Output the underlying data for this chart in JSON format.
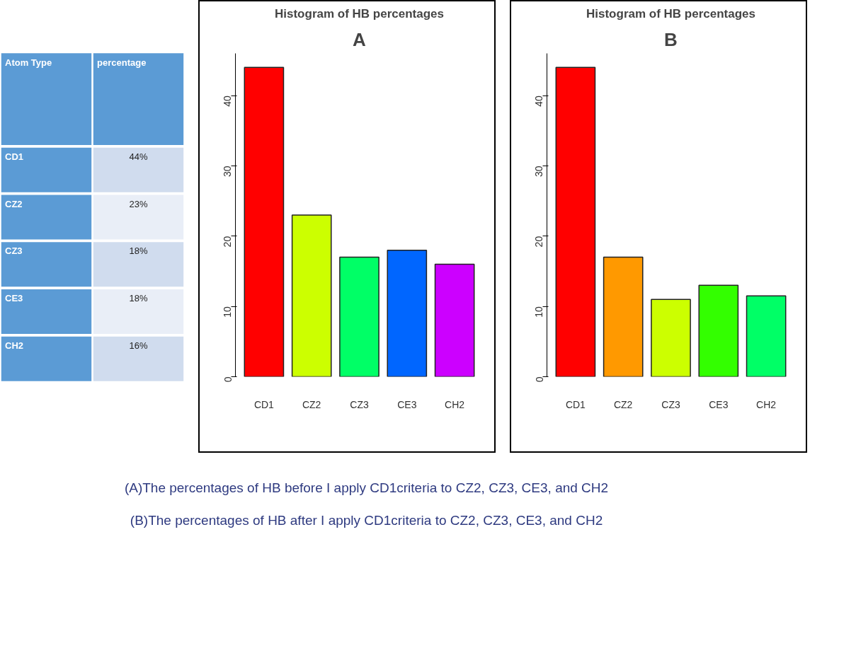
{
  "chart_data": [
    {
      "type": "other",
      "annotations": [
        "Atom Type",
        "percentage",
        "CD1",
        "44%",
        "CZ2",
        "23%",
        "CZ3",
        "18%",
        "CE3",
        "18%",
        "CH2",
        "16%"
      ]
    },
    {
      "type": "bar",
      "title": "Histogram of HB percentages",
      "annotations": [
        "A"
      ],
      "categories": [
        "CD1",
        "CZ2",
        "CZ3",
        "CE3",
        "CH2"
      ],
      "values": [
        44,
        23,
        17,
        18,
        16
      ],
      "colors": [
        "#ff0000",
        "#ccff00",
        "#00ff66",
        "#0066ff",
        "#cc00ff"
      ],
      "ylim": [
        0,
        46
      ],
      "yticks": [
        0,
        10,
        20,
        30,
        40
      ],
      "grid": false
    },
    {
      "type": "bar",
      "title": "Histogram of HB percentages",
      "annotations": [
        "B"
      ],
      "categories": [
        "CD1",
        "CZ2",
        "CZ3",
        "CE3",
        "CH2"
      ],
      "values": [
        44,
        17,
        11,
        13,
        11.5
      ],
      "colors": [
        "#ff0000",
        "#ff9900",
        "#ccff00",
        "#33ff00",
        "#00ff66"
      ],
      "ylim": [
        0,
        46
      ],
      "yticks": [
        0,
        10,
        20,
        30,
        40
      ],
      "grid": false
    },
    {
      "type": "other",
      "annotations": [
        "(A)The percentages of HB before I apply CD1criteria to CZ2, CZ3, CE3, and CH2",
        "(B)The percentages of HB after I apply CD1criteria to CZ2, CZ3, CE3, and CH2"
      ]
    }
  ]
}
